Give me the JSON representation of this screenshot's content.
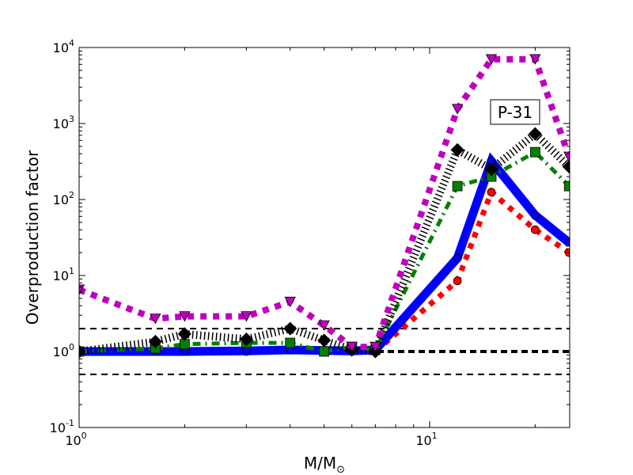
{
  "chart_data": {
    "type": "line",
    "title": "",
    "xlabel": "M/M",
    "xlabel_symbol": "⊙",
    "ylabel": "Overproduction factor",
    "xscale": "log",
    "yscale": "log",
    "xlim": [
      1,
      25
    ],
    "ylim": [
      0.1,
      10000
    ],
    "x_ticks": [
      {
        "value": 1,
        "base": "10",
        "exp": "0"
      },
      {
        "value": 10,
        "base": "10",
        "exp": "1"
      }
    ],
    "y_ticks": [
      {
        "value": 0.1,
        "base": "10",
        "exp": "-1"
      },
      {
        "value": 1,
        "base": "10",
        "exp": "0"
      },
      {
        "value": 10,
        "base": "10",
        "exp": "1"
      },
      {
        "value": 100,
        "base": "10",
        "exp": "2"
      },
      {
        "value": 1000,
        "base": "10",
        "exp": "3"
      },
      {
        "value": 10000,
        "base": "10",
        "exp": "4"
      }
    ],
    "annotation": "P-31",
    "reference_lines": [
      {
        "y": 2,
        "style": "dashed",
        "color": "#000000"
      },
      {
        "y": 1,
        "style": "dashed-thick",
        "color": "#000000"
      },
      {
        "y": 0.5,
        "style": "dashed",
        "color": "#000000"
      }
    ],
    "x": [
      1,
      1.65,
      2,
      3,
      4,
      5,
      6,
      7,
      12,
      15,
      20,
      25
    ],
    "series": [
      {
        "name": "red",
        "color": "#ff0000",
        "marker": "circle",
        "style": "dotted",
        "values": [
          1.0,
          1.0,
          1.0,
          1.0,
          1.05,
          1.0,
          1.0,
          1.0,
          8.5,
          125,
          40,
          20
        ]
      },
      {
        "name": "blue",
        "color": "#0000ff",
        "marker": "pentagon",
        "style": "solid",
        "values": [
          1.0,
          1.0,
          1.0,
          1.02,
          1.05,
          1.03,
          1.02,
          1.05,
          17,
          320,
          62,
          27
        ]
      },
      {
        "name": "green",
        "color": "#008000",
        "marker": "square",
        "style": "dashdot",
        "values": [
          1.0,
          1.1,
          1.25,
          1.3,
          1.3,
          1.0,
          1.15,
          1.05,
          150,
          200,
          420,
          150
        ]
      },
      {
        "name": "black",
        "color": "#000000",
        "marker": "diamond",
        "style": "finedot",
        "values": [
          1.0,
          1.35,
          1.7,
          1.45,
          2.0,
          1.4,
          1.05,
          1.0,
          450,
          250,
          730,
          270
        ]
      },
      {
        "name": "magenta",
        "color": "#bf00bf",
        "marker": "triangle-down",
        "style": "dotted",
        "values": [
          6.5,
          2.7,
          2.9,
          2.9,
          4.5,
          2.2,
          1.15,
          1.15,
          1550,
          7000,
          7000,
          365
        ]
      }
    ]
  }
}
